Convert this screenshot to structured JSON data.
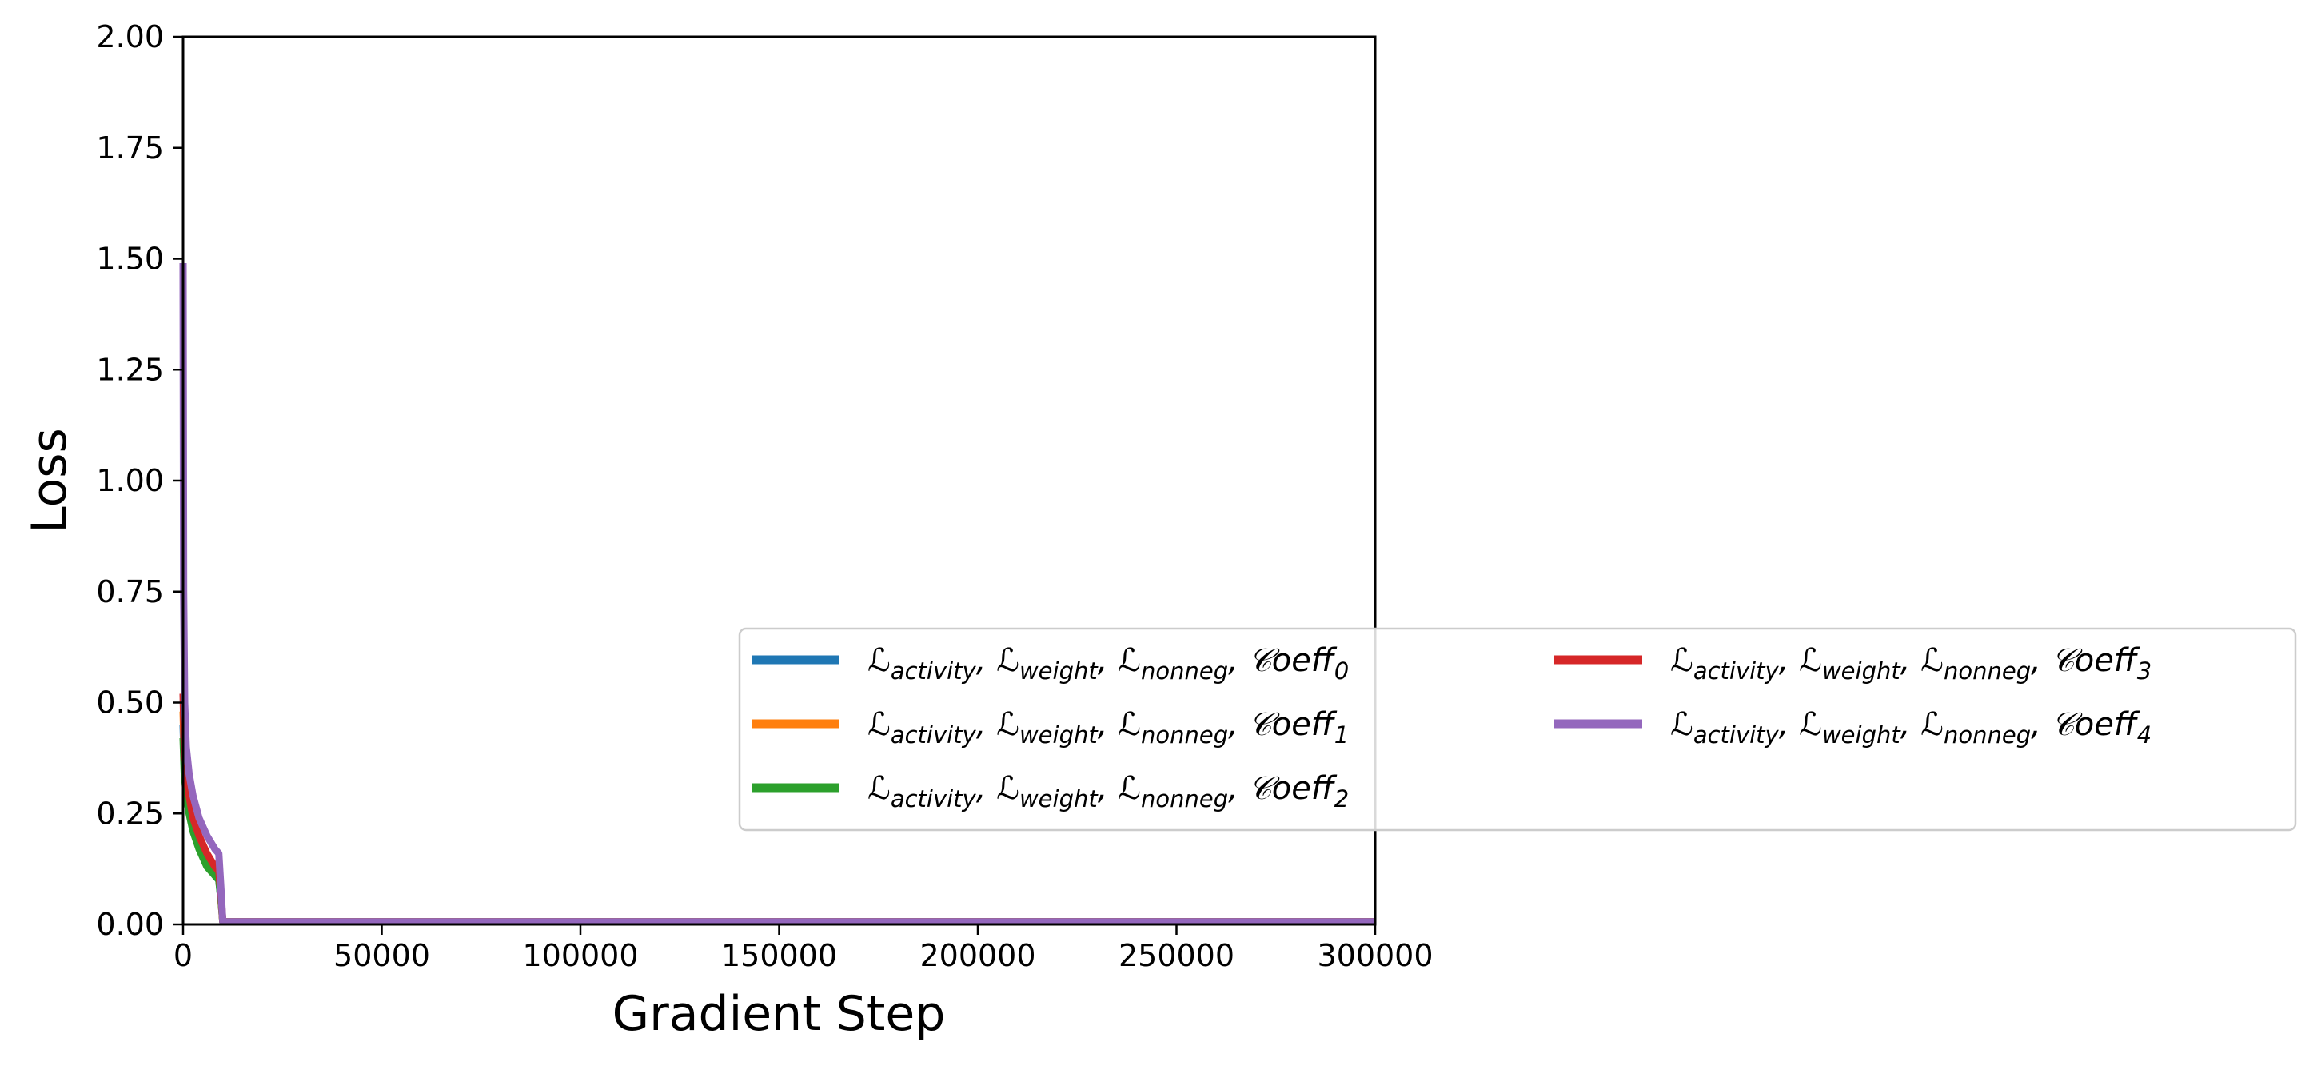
{
  "chart_data": {
    "type": "line",
    "xlabel": "Gradient Step",
    "ylabel": "Loss",
    "xlim": [
      0,
      300000
    ],
    "ylim": [
      0,
      2.0
    ],
    "x_ticks": [
      0,
      50000,
      100000,
      150000,
      200000,
      250000,
      300000
    ],
    "x_tick_labels": [
      "0",
      "50000",
      "100000",
      "150000",
      "200000",
      "250000",
      "300000"
    ],
    "y_ticks": [
      0,
      0.25,
      0.5,
      0.75,
      1.0,
      1.25,
      1.5,
      1.75,
      2.0
    ],
    "y_tick_labels": [
      "0.00",
      "0.25",
      "0.50",
      "0.75",
      "1.00",
      "1.25",
      "1.50",
      "1.75",
      "2.00"
    ],
    "grid": false,
    "legend_position": "center-right",
    "legend_columns": 2,
    "series": [
      {
        "name": "ℒ_activity, ℒ_weight, ℒ_nonneg, 𝒞oeff_0",
        "name_parts": [
          "ℒ",
          "activity",
          ",  ℒ",
          "weight",
          ",  ℒ",
          "nonneg",
          ",  𝒞oeff",
          "0"
        ],
        "color": "#1f77b4",
        "x": [
          0,
          300,
          800,
          1500,
          2500,
          4000,
          6000,
          8000,
          9000,
          9600,
          10000,
          300000
        ],
        "y": [
          0.45,
          0.36,
          0.31,
          0.26,
          0.22,
          0.18,
          0.14,
          0.11,
          0.1,
          0.05,
          0.006,
          0.006
        ]
      },
      {
        "name": "ℒ_activity, ℒ_weight, ℒ_nonneg, 𝒞oeff_1",
        "name_parts": [
          "ℒ",
          "activity",
          ",  ℒ",
          "weight",
          ",  ℒ",
          "nonneg",
          ",  𝒞oeff",
          "1"
        ],
        "color": "#ff7f0e",
        "x": [
          0,
          300,
          800,
          1500,
          2500,
          4000,
          6000,
          8000,
          9000,
          9600,
          10000,
          300000
        ],
        "y": [
          0.48,
          0.38,
          0.32,
          0.27,
          0.23,
          0.19,
          0.15,
          0.12,
          0.11,
          0.05,
          0.006,
          0.006
        ]
      },
      {
        "name": "ℒ_activity, ℒ_weight, ℒ_nonneg, 𝒞oeff_2",
        "name_parts": [
          "ℒ",
          "activity",
          ",  ℒ",
          "weight",
          ",  ℒ",
          "nonneg",
          ",  𝒞oeff",
          "2"
        ],
        "color": "#2ca02c",
        "x": [
          0,
          300,
          800,
          1500,
          2500,
          4000,
          6000,
          8000,
          9000,
          9600,
          10000,
          300000
        ],
        "y": [
          0.42,
          0.34,
          0.29,
          0.25,
          0.21,
          0.17,
          0.13,
          0.11,
          0.1,
          0.05,
          0.006,
          0.006
        ]
      },
      {
        "name": "ℒ_activity, ℒ_weight, ℒ_nonneg, 𝒞oeff_3",
        "name_parts": [
          "ℒ",
          "activity",
          ",  ℒ",
          "weight",
          ",  ℒ",
          "nonneg",
          ",  𝒞oeff",
          "3"
        ],
        "color": "#d62728",
        "x": [
          0,
          300,
          800,
          1500,
          2500,
          4000,
          6000,
          8000,
          9000,
          9600,
          10000,
          300000
        ],
        "y": [
          0.52,
          0.4,
          0.34,
          0.29,
          0.24,
          0.2,
          0.16,
          0.13,
          0.12,
          0.06,
          0.006,
          0.006
        ]
      },
      {
        "name": "ℒ_activity, ℒ_weight, ℒ_nonneg, 𝒞oeff_4",
        "name_parts": [
          "ℒ",
          "activity",
          ",  ℒ",
          "weight",
          ",  ℒ",
          "nonneg",
          ",  𝒞oeff",
          "4"
        ],
        "color": "#9467bd",
        "x": [
          0,
          150,
          400,
          800,
          1500,
          2500,
          4000,
          6000,
          8000,
          9000,
          9600,
          10000,
          300000
        ],
        "y": [
          1.49,
          0.75,
          0.5,
          0.4,
          0.34,
          0.29,
          0.24,
          0.2,
          0.17,
          0.16,
          0.07,
          0.006,
          0.006
        ]
      }
    ]
  }
}
